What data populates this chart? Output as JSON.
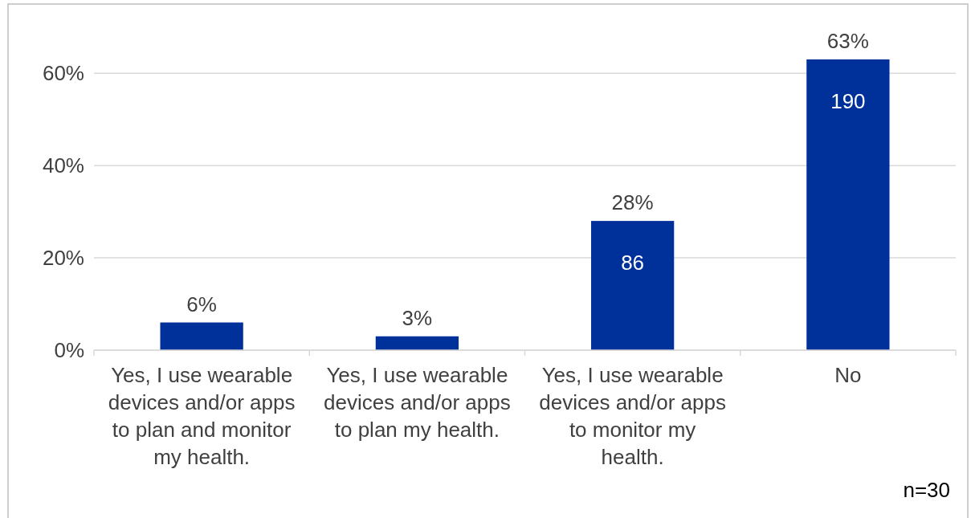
{
  "chart_data": {
    "type": "bar",
    "categories": [
      "Yes, I use wearable devices and/or apps to plan and monitor my health.",
      "Yes, I use wearable devices and/or apps to plan my health.",
      "Yes, I use wearable devices and/or apps to monitor my health.",
      "No"
    ],
    "values": [
      6,
      3,
      28,
      63
    ],
    "value_labels": [
      "6%",
      "3%",
      "28%",
      "63%"
    ],
    "color": "#00309a",
    "ylim": [
      0,
      75
    ],
    "yticks": [
      {
        "value": 0,
        "label": "0%"
      },
      {
        "value": 20,
        "label": "20%"
      },
      {
        "value": 40,
        "label": "40%"
      },
      {
        "value": 60,
        "label": "60%"
      }
    ],
    "grid": "y",
    "annotations": [
      "86",
      "190",
      "n=30"
    ]
  }
}
